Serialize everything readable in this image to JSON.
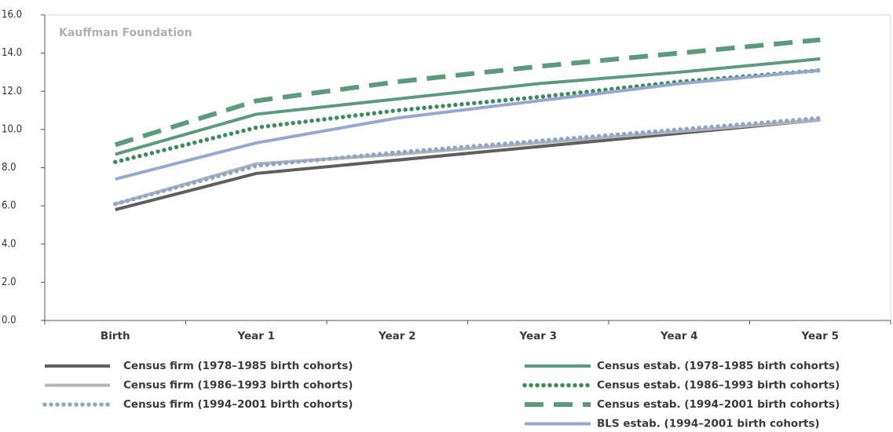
{
  "chart_data": {
    "type": "line",
    "annotation": "Kauffman Foundation",
    "categories": [
      "Birth",
      "Year 1",
      "Year 2",
      "Year 3",
      "Year 4",
      "Year 5"
    ],
    "ylim": [
      0,
      16
    ],
    "yticks": [
      {
        "value": 0,
        "label": "0.0"
      },
      {
        "value": 2,
        "label": "2.0"
      },
      {
        "value": 4,
        "label": "4.0"
      },
      {
        "value": 6,
        "label": "6.0"
      },
      {
        "value": 8,
        "label": "8.0"
      },
      {
        "value": 10,
        "label": "10.0"
      },
      {
        "value": 12,
        "label": "12.0"
      },
      {
        "value": 14,
        "label": "14.0"
      },
      {
        "value": 16,
        "label": "16.0"
      }
    ],
    "series": [
      {
        "name": "Census firm (1978–1985 birth cohorts)",
        "color": "#5f5f62",
        "dash": "solid",
        "values": [
          5.8,
          7.7,
          8.4,
          9.1,
          9.8,
          10.5
        ]
      },
      {
        "name": "Census firm (1986–1993 birth cohorts)",
        "color": "#b4b4b4",
        "dash": "solid",
        "values": [
          6.1,
          8.2,
          8.7,
          9.3,
          9.9,
          10.5
        ]
      },
      {
        "name": "Census firm (1994–2001 birth cohorts)",
        "color": "#8fa5cc",
        "dash": "dotted",
        "values": [
          6.1,
          8.1,
          8.8,
          9.4,
          10.0,
          10.6
        ]
      },
      {
        "name": "Census estab. (1978–1985 birth cohorts)",
        "color": "#5b9a7d",
        "dash": "solid",
        "values": [
          8.7,
          10.8,
          11.6,
          12.4,
          13.0,
          13.7
        ]
      },
      {
        "name": "Census estab. (1986–1993 birth cohorts)",
        "color": "#3f8a5e",
        "dash": "dotted",
        "values": [
          8.3,
          10.1,
          11.0,
          11.7,
          12.5,
          13.1
        ]
      },
      {
        "name": "Census estab. (1994–2001 birth cohorts)",
        "color": "#5b9a7d",
        "dash": "dashed",
        "values": [
          9.2,
          11.5,
          12.5,
          13.3,
          14.0,
          14.7
        ]
      },
      {
        "name": "BLS estab. (1994–2001 birth cohorts)",
        "color": "#97a8d0",
        "dash": "solid",
        "values": [
          7.4,
          9.3,
          10.6,
          11.5,
          12.4,
          13.1
        ]
      }
    ]
  }
}
